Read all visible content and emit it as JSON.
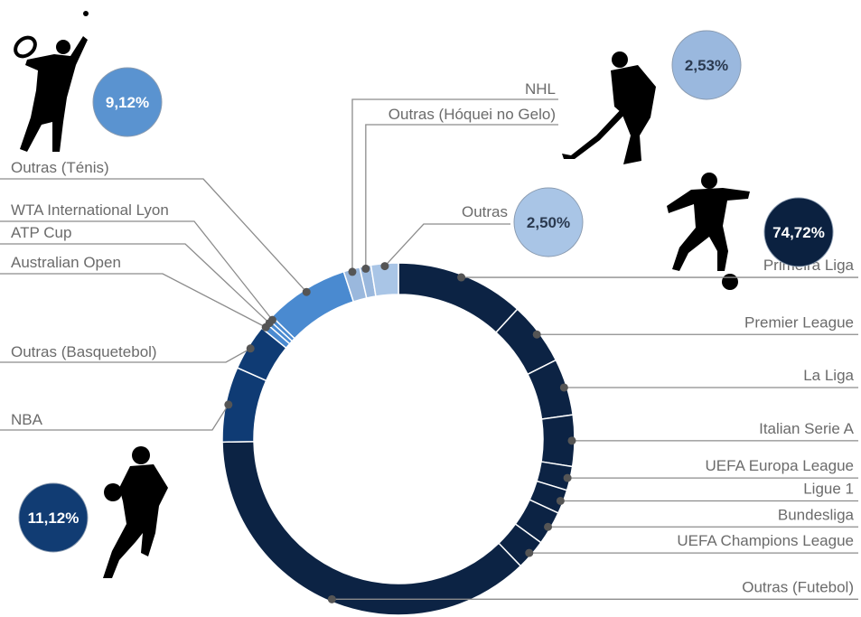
{
  "chart_data": {
    "type": "donut",
    "categories": [
      "Primeira Liga",
      "Premier League",
      "La Liga",
      "Italian Serie A",
      "UEFA Europa League",
      "Ligue 1",
      "Bundesliga",
      "UEFA Champions League",
      "Outras (Futebol)",
      "NBA",
      "Outras (Basquetebol)",
      "Australian Open",
      "ATP Cup",
      "WTA International Lyon",
      "Outras (Ténis)",
      "NHL",
      "Outras (Hóquei no Gelo)",
      "Outras"
    ],
    "values": [
      11.8,
      5.8,
      5.2,
      4.7,
      2.2,
      2.2,
      3.1,
      2.8,
      36.92,
      6.9,
      4.22,
      0.6,
      0.4,
      0.4,
      7.72,
      1.5,
      1.03,
      2.5
    ],
    "colors": [
      "#0c2344",
      "#0c2344",
      "#0c2344",
      "#0c2344",
      "#0c2344",
      "#0c2344",
      "#0c2344",
      "#0c2344",
      "#0c2344",
      "#0f3b74",
      "#0f3b74",
      "#4a8ad0",
      "#4a8ad0",
      "#4a8ad0",
      "#4a8ad0",
      "#9ab8dd",
      "#9ab8dd",
      "#a9c5e6"
    ],
    "totals": {
      "values": [
        74.72,
        11.12,
        9.12,
        2.53,
        2.5
      ],
      "value_labels": [
        "74,72%",
        "11,12%",
        "9,12%",
        "2,53%",
        "2,50%"
      ],
      "colors": [
        "#0b2140",
        "#113c73",
        "#5a93d0",
        "#9ab8de",
        "#a9c5e6"
      ]
    }
  }
}
